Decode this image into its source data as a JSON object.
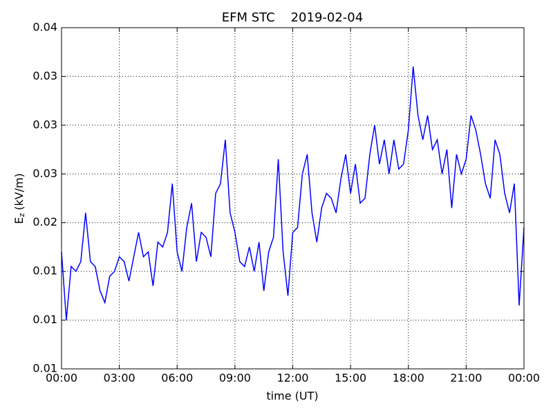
{
  "chart_data": {
    "type": "line",
    "title": "EFM STC    2019-02-04",
    "x_label": "time (UT)",
    "y_label": {
      "symbol": "E",
      "subscript": "z",
      "unit": "(kV/m)"
    },
    "xlim": [
      0,
      24
    ],
    "xticks": [
      {
        "value": 0,
        "label": "00:00"
      },
      {
        "value": 3,
        "label": "03:00"
      },
      {
        "value": 6,
        "label": "06:00"
      },
      {
        "value": 9,
        "label": "09:00"
      },
      {
        "value": 12,
        "label": "12:00"
      },
      {
        "value": 15,
        "label": "15:00"
      },
      {
        "value": 18,
        "label": "18:00"
      },
      {
        "value": 21,
        "label": "21:00"
      },
      {
        "value": 24,
        "label": "00:00"
      }
    ],
    "ylim": [
      0.005,
      0.04
    ],
    "yticks": [
      {
        "value": 0.005,
        "label": "0.01"
      },
      {
        "value": 0.01,
        "label": "0.01"
      },
      {
        "value": 0.015,
        "label": "0.01"
      },
      {
        "value": 0.02,
        "label": "0.02"
      },
      {
        "value": 0.025,
        "label": "0.03"
      },
      {
        "value": 0.03,
        "label": "0.03"
      },
      {
        "value": 0.035,
        "label": "0.03"
      },
      {
        "value": 0.04,
        "label": "0.04"
      }
    ],
    "grid": true,
    "x": [
      0,
      0.25,
      0.5,
      0.75,
      1,
      1.25,
      1.5,
      1.75,
      2,
      2.25,
      2.5,
      2.75,
      3,
      3.25,
      3.5,
      3.75,
      4,
      4.25,
      4.5,
      4.75,
      5,
      5.25,
      5.5,
      5.75,
      6,
      6.25,
      6.5,
      6.75,
      7,
      7.25,
      7.5,
      7.75,
      8,
      8.25,
      8.5,
      8.75,
      9,
      9.25,
      9.5,
      9.75,
      10,
      10.25,
      10.5,
      10.75,
      11,
      11.25,
      11.5,
      11.75,
      12,
      12.25,
      12.5,
      12.75,
      13,
      13.25,
      13.5,
      13.75,
      14,
      14.25,
      14.5,
      14.75,
      15,
      15.25,
      15.5,
      15.75,
      16,
      16.25,
      16.5,
      16.75,
      17,
      17.25,
      17.5,
      17.75,
      18,
      18.25,
      18.5,
      18.75,
      19,
      19.25,
      19.5,
      19.75,
      20,
      20.25,
      20.5,
      20.75,
      21,
      21.25,
      21.5,
      21.75,
      22,
      22.25,
      22.5,
      22.75,
      23,
      23.25,
      23.5,
      23.75,
      24
    ],
    "series": [
      {
        "color": "#0000ff",
        "values": [
          0.017,
          0.01,
          0.0155,
          0.015,
          0.016,
          0.021,
          0.016,
          0.0155,
          0.013,
          0.0118,
          0.0145,
          0.015,
          0.0165,
          0.016,
          0.014,
          0.0165,
          0.019,
          0.0165,
          0.017,
          0.0135,
          0.018,
          0.0175,
          0.019,
          0.024,
          0.017,
          0.015,
          0.0195,
          0.022,
          0.016,
          0.019,
          0.0185,
          0.0165,
          0.023,
          0.024,
          0.0285,
          0.021,
          0.019,
          0.016,
          0.0155,
          0.0175,
          0.015,
          0.018,
          0.013,
          0.017,
          0.0185,
          0.0265,
          0.017,
          0.0125,
          0.019,
          0.0195,
          0.025,
          0.027,
          0.021,
          0.018,
          0.0215,
          0.023,
          0.0225,
          0.021,
          0.0245,
          0.027,
          0.023,
          0.026,
          0.022,
          0.0225,
          0.027,
          0.03,
          0.026,
          0.0285,
          0.025,
          0.0285,
          0.0255,
          0.026,
          0.0295,
          0.036,
          0.031,
          0.0285,
          0.031,
          0.0275,
          0.0285,
          0.025,
          0.0275,
          0.0215,
          0.027,
          0.025,
          0.0265,
          0.031,
          0.0295,
          0.027,
          0.024,
          0.0225,
          0.0285,
          0.027,
          0.023,
          0.021,
          0.024,
          0.0115,
          0.0195
        ]
      }
    ]
  }
}
